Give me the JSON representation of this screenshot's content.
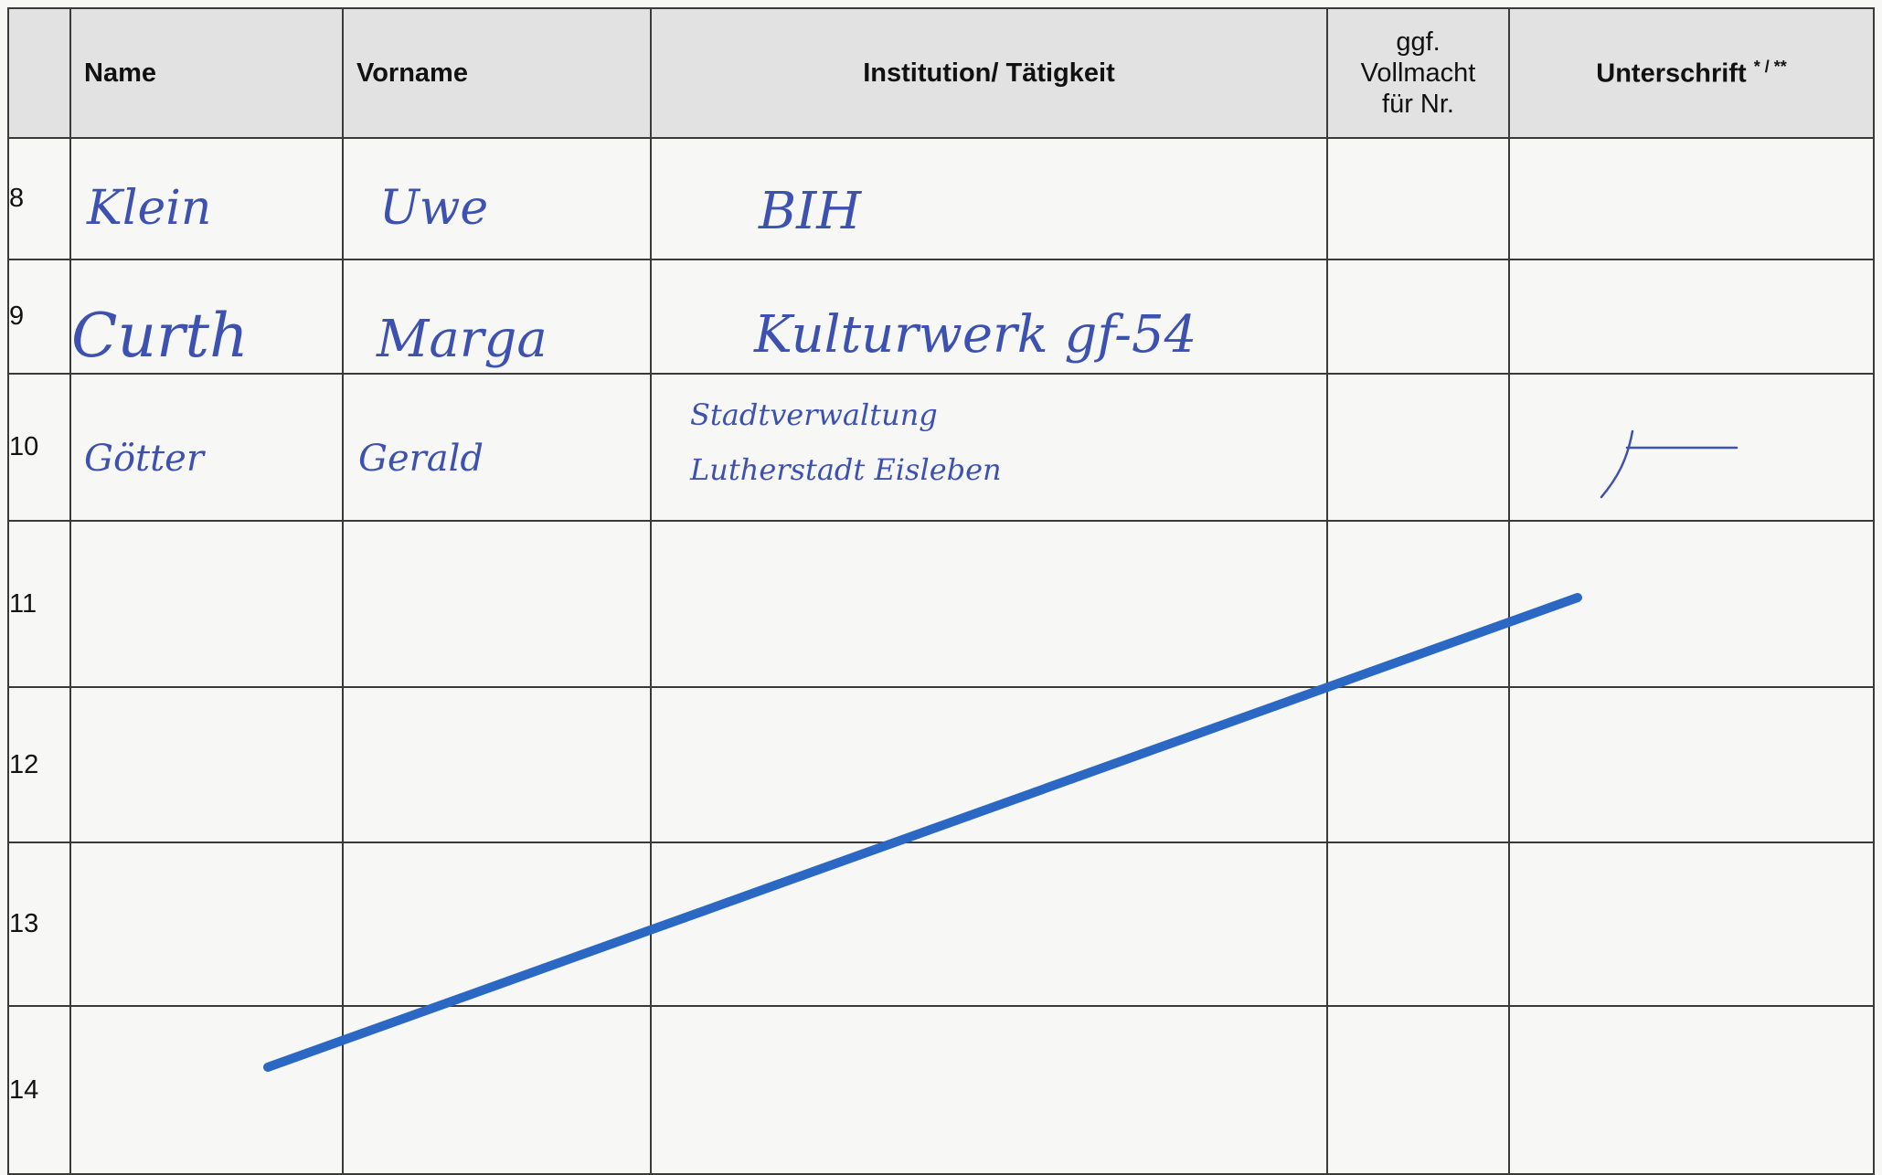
{
  "headers": {
    "name": "Name",
    "vorname": "Vorname",
    "institution": "Institution/ Tätigkeit",
    "vollmacht": [
      "ggf.",
      "Vollmacht",
      "für Nr."
    ],
    "unterschrift": "Unterschrift",
    "unterschrift_mark": "* / **"
  },
  "rows": [
    {
      "nr": "8",
      "name": "Klein",
      "vorname": "Uwe",
      "institution": "BIH"
    },
    {
      "nr": "9",
      "name": "Curth",
      "vorname": "Marga",
      "institution": "Kulturwerk gf-54"
    },
    {
      "nr": "10",
      "name": "Götter",
      "vorname": "Gerald",
      "institution": [
        "Stadtverwaltung",
        "Lutherstadt Eisleben"
      ]
    },
    {
      "nr": "11"
    },
    {
      "nr": "12"
    },
    {
      "nr": "13"
    },
    {
      "nr": "14"
    }
  ],
  "colors": {
    "ink": "#3d52b0",
    "strike": "#2a68c4"
  }
}
